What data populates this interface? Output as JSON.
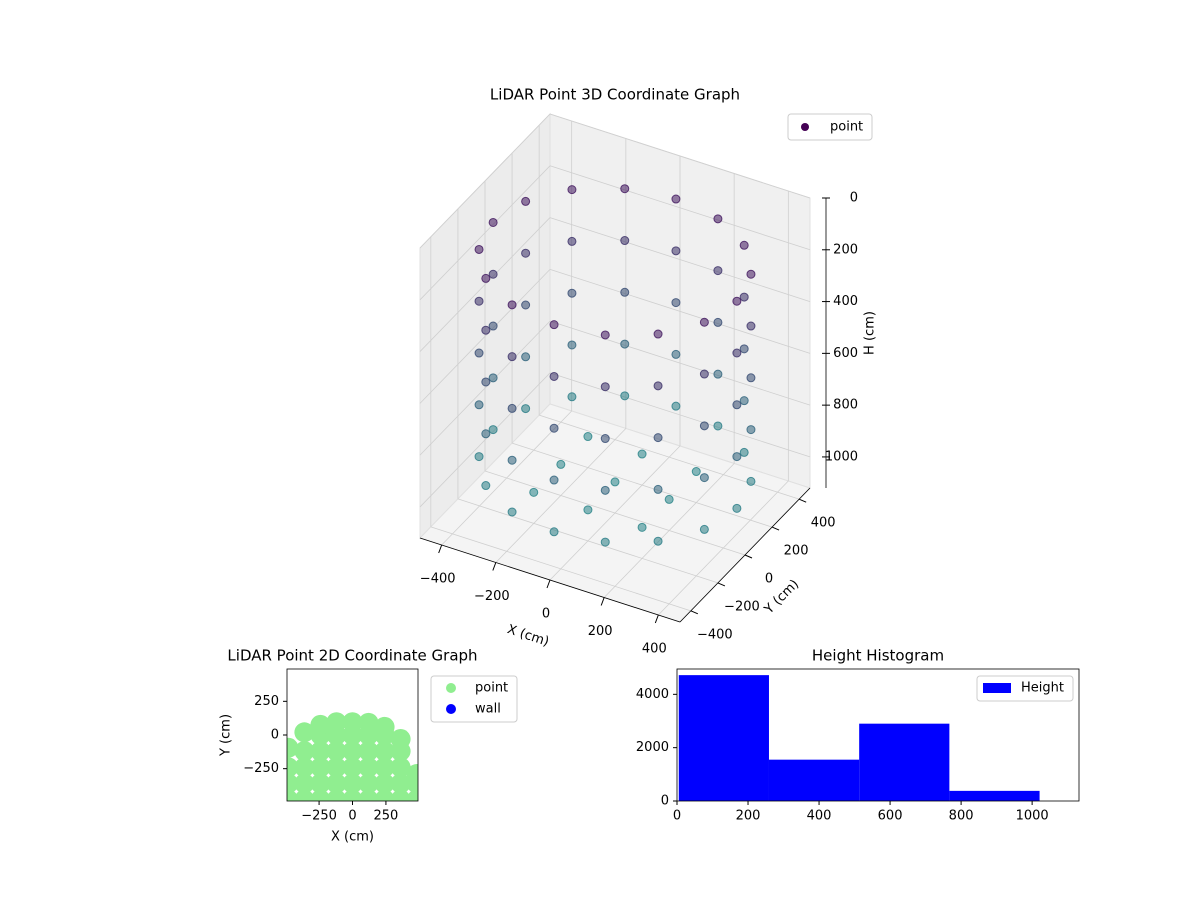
{
  "chart_data": [
    {
      "type": "scatter3d",
      "title": "LiDAR Point 3D Coordinate Graph",
      "xlabel": "X (cm)",
      "ylabel": "Y (cm)",
      "zlabel": "H (cm)",
      "xlim": [
        -480,
        480
      ],
      "ylim": [
        -480,
        480
      ],
      "zlim": [
        0,
        1120
      ],
      "zinverted": true,
      "xticks": [
        {
          "value": -400,
          "label": "−400"
        },
        {
          "value": -200,
          "label": "−200"
        },
        0,
        200,
        400
      ],
      "yticks": [
        {
          "value": -400,
          "label": "−400"
        },
        {
          "value": -200,
          "label": "−200"
        },
        0,
        200,
        400
      ],
      "zticks": [
        0,
        200,
        400,
        600,
        800,
        1000
      ],
      "cmap": [
        "#440154",
        "#21918c"
      ],
      "legend": "upper right",
      "grid": true,
      "series": [
        {
          "name": "point",
          "color": "#440154",
          "x": [
            450,
            416,
            318,
            172,
            0,
            -172,
            -318,
            -416,
            -450,
            -416,
            -318,
            -172,
            0,
            172,
            318,
            416,
            450,
            416,
            318,
            172,
            0,
            -172,
            -318,
            -416,
            -450,
            -416,
            -318,
            -172,
            0,
            172,
            318,
            416,
            450,
            416,
            318,
            172,
            0,
            -172,
            -318,
            -416,
            -450,
            -416,
            -318,
            -172,
            0,
            172,
            318,
            416,
            450,
            416,
            318,
            172,
            0,
            -172,
            -318,
            -416,
            -450,
            -416,
            -318,
            -172,
            0,
            172,
            318,
            416,
            450,
            416,
            318,
            172,
            0,
            -172,
            -318,
            -416,
            -450,
            -416,
            -318,
            -172,
            0,
            172,
            318,
            416,
            0,
            200,
            -200,
            0,
            0,
            200,
            -200,
            200,
            -200
          ],
          "y": [
            0,
            172,
            318,
            416,
            450,
            416,
            318,
            172,
            0,
            -172,
            -318,
            -416,
            -450,
            -416,
            -318,
            -172,
            0,
            172,
            318,
            416,
            450,
            416,
            318,
            172,
            0,
            -172,
            -318,
            -416,
            -450,
            -416,
            -318,
            -172,
            0,
            172,
            318,
            416,
            450,
            416,
            318,
            172,
            0,
            -172,
            -318,
            -416,
            -450,
            -416,
            -318,
            -172,
            0,
            172,
            318,
            416,
            450,
            416,
            318,
            172,
            0,
            -172,
            -318,
            -416,
            -450,
            -416,
            -318,
            -172,
            0,
            172,
            318,
            416,
            450,
            416,
            318,
            172,
            0,
            -172,
            -318,
            -416,
            -450,
            -416,
            -318,
            -172,
            0,
            0,
            0,
            200,
            -200,
            200,
            -200,
            -200,
            200
          ],
          "z": [
            150,
            150,
            150,
            150,
            150,
            150,
            150,
            150,
            150,
            150,
            150,
            150,
            150,
            150,
            150,
            150,
            350,
            350,
            350,
            350,
            350,
            350,
            350,
            350,
            350,
            350,
            350,
            350,
            350,
            350,
            350,
            350,
            550,
            550,
            550,
            550,
            550,
            550,
            550,
            550,
            550,
            550,
            550,
            550,
            550,
            550,
            550,
            550,
            750,
            750,
            750,
            750,
            750,
            750,
            750,
            750,
            750,
            750,
            750,
            750,
            750,
            750,
            750,
            750,
            950,
            950,
            950,
            950,
            950,
            950,
            950,
            950,
            950,
            950,
            950,
            950,
            950,
            950,
            950,
            950,
            1000,
            1000,
            1000,
            1000,
            1000,
            1000,
            1000,
            1000,
            1000
          ]
        }
      ]
    },
    {
      "type": "scatter",
      "title": "LiDAR Point 2D Coordinate Graph",
      "xlabel": "X (cm)",
      "ylabel": "Y (cm)",
      "xlim": [
        -490,
        490
      ],
      "ylim": [
        -490,
        490
      ],
      "xticks": [
        {
          "value": -250,
          "label": "−250"
        },
        0,
        250
      ],
      "yticks": [
        {
          "value": -250,
          "label": "−250"
        },
        0,
        250
      ],
      "legend": "outside right",
      "series": [
        {
          "name": "point",
          "color": "#90ee90",
          "x": [
            -480,
            -480,
            -480,
            -480,
            -360,
            -360,
            -360,
            -360,
            -360,
            -240,
            -240,
            -240,
            -240,
            -240,
            -240,
            -120,
            -120,
            -120,
            -120,
            -120,
            -120,
            0,
            0,
            0,
            0,
            0,
            0,
            120,
            120,
            120,
            120,
            120,
            120,
            240,
            240,
            240,
            240,
            240,
            240,
            360,
            360,
            360,
            360,
            360,
            480,
            480,
            480
          ],
          "y": [
            -480,
            -360,
            -240,
            -95,
            -480,
            -360,
            -240,
            -120,
            20,
            -480,
            -360,
            -240,
            -120,
            0,
            75,
            -480,
            -360,
            -240,
            -120,
            0,
            95,
            -480,
            -360,
            -240,
            -120,
            0,
            95,
            -480,
            -360,
            -240,
            -120,
            0,
            90,
            -480,
            -360,
            -240,
            -120,
            0,
            60,
            -480,
            -360,
            -240,
            -120,
            -30,
            -480,
            -360,
            -290
          ]
        },
        {
          "name": "wall",
          "color": "#0000ff",
          "x": [],
          "y": []
        }
      ]
    },
    {
      "type": "histogram",
      "title": "Height Histogram",
      "bins": [
        5,
        259,
        513,
        767,
        1021
      ],
      "values": [
        4720,
        1550,
        2900,
        380
      ],
      "name": "Height",
      "color": "#0000ff",
      "xlim": [
        0,
        1132
      ],
      "ylim": [
        0,
        4950
      ],
      "xticks": [
        0,
        200,
        400,
        600,
        800,
        1000
      ],
      "yticks": [
        0,
        2000,
        4000
      ],
      "legend": "upper right"
    }
  ]
}
